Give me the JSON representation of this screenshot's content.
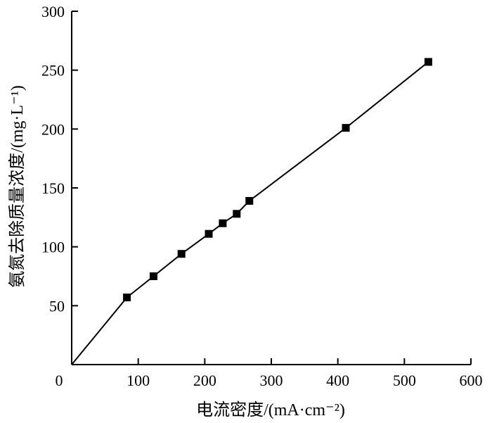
{
  "chart_data": {
    "type": "line",
    "title": "",
    "xlabel": "电流密度/(mA·cm⁻²)",
    "ylabel": "氨氮去除质量浓度/(mg·L⁻¹)",
    "xlim": [
      0,
      600
    ],
    "ylim": [
      0,
      300
    ],
    "x_ticks": [
      0,
      100,
      200,
      300,
      400,
      500,
      600
    ],
    "y_ticks": [
      50,
      100,
      150,
      200,
      250,
      300
    ],
    "grid": false,
    "legend": "none",
    "series": [
      {
        "marker": "square",
        "color": "#000000",
        "x": [
          0,
          83,
          123,
          165,
          206,
          227,
          248,
          267,
          412,
          536
        ],
        "y": [
          0,
          57,
          75,
          94,
          111,
          120,
          128,
          139,
          201,
          257
        ],
        "marker_visible": [
          false,
          true,
          true,
          true,
          true,
          true,
          true,
          true,
          true,
          true
        ]
      }
    ]
  }
}
